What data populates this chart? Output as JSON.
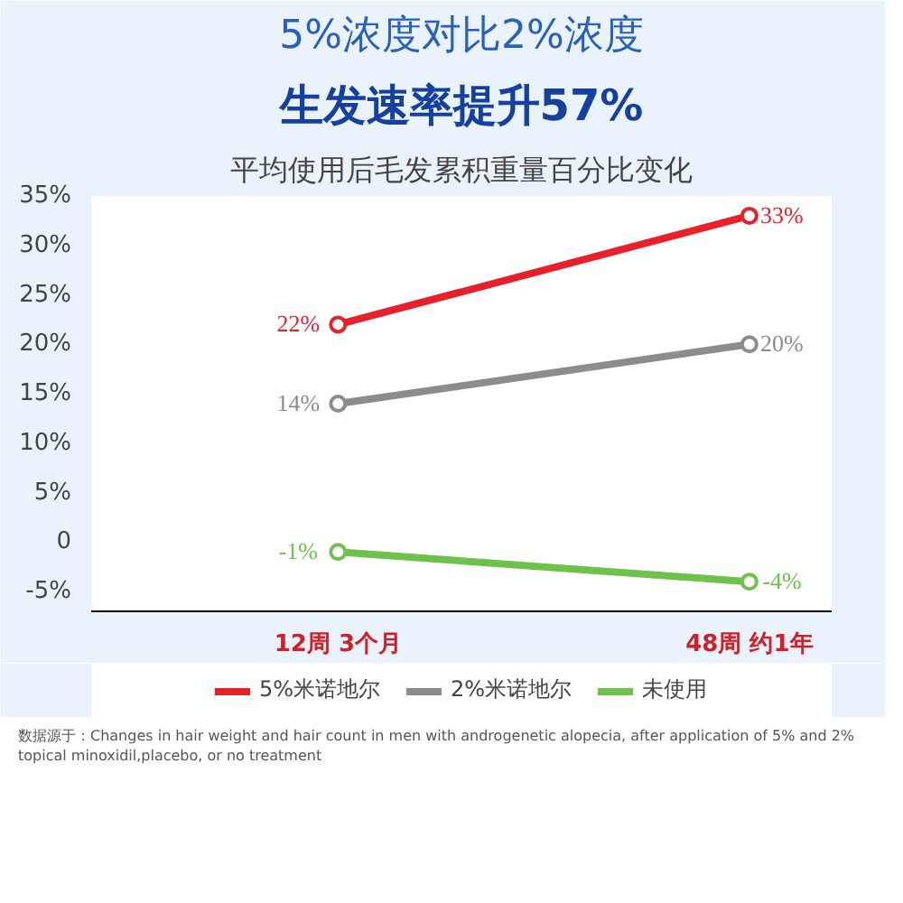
{
  "chart_data": {
    "type": "line",
    "title": "5%浓度对比2%浓度",
    "subtitle": "生发速率提升57%",
    "annotations": [
      "平均使用后毛发累积重量百分比变化",
      "数据源于：Changes in hair weight and hair count in men with androgenetic alopecia, after application of 5% and 2% topical minoxidil,placebo, or no treatment"
    ],
    "categories": [
      "12周 3个月",
      "48周 约1年"
    ],
    "series": [
      {
        "name": "5%米诺地尔",
        "color": "#e8202a",
        "values": [
          22,
          33
        ],
        "value_labels": [
          "22%",
          "33%"
        ]
      },
      {
        "name": "2%米诺地尔",
        "color": "#8c8c8c",
        "values": [
          14,
          20
        ],
        "value_labels": [
          "14%",
          "20%"
        ]
      },
      {
        "name": "未使用",
        "color": "#6cc24a",
        "values": [
          -1,
          -4
        ],
        "value_labels": [
          "-1%",
          "-4%"
        ]
      }
    ],
    "ylim": [
      -7,
      35
    ],
    "yticks": [
      {
        "value": 35,
        "label": "35%"
      },
      {
        "value": 30,
        "label": "30%"
      },
      {
        "value": 25,
        "label": "25%"
      },
      {
        "value": 20,
        "label": "20%"
      },
      {
        "value": 15,
        "label": "15%"
      },
      {
        "value": 10,
        "label": "10%"
      },
      {
        "value": 5,
        "label": "5%"
      },
      0,
      {
        "value": -5,
        "label": "-5%"
      }
    ],
    "marker": "circle",
    "line_style": "solid",
    "legend": "bottom"
  }
}
